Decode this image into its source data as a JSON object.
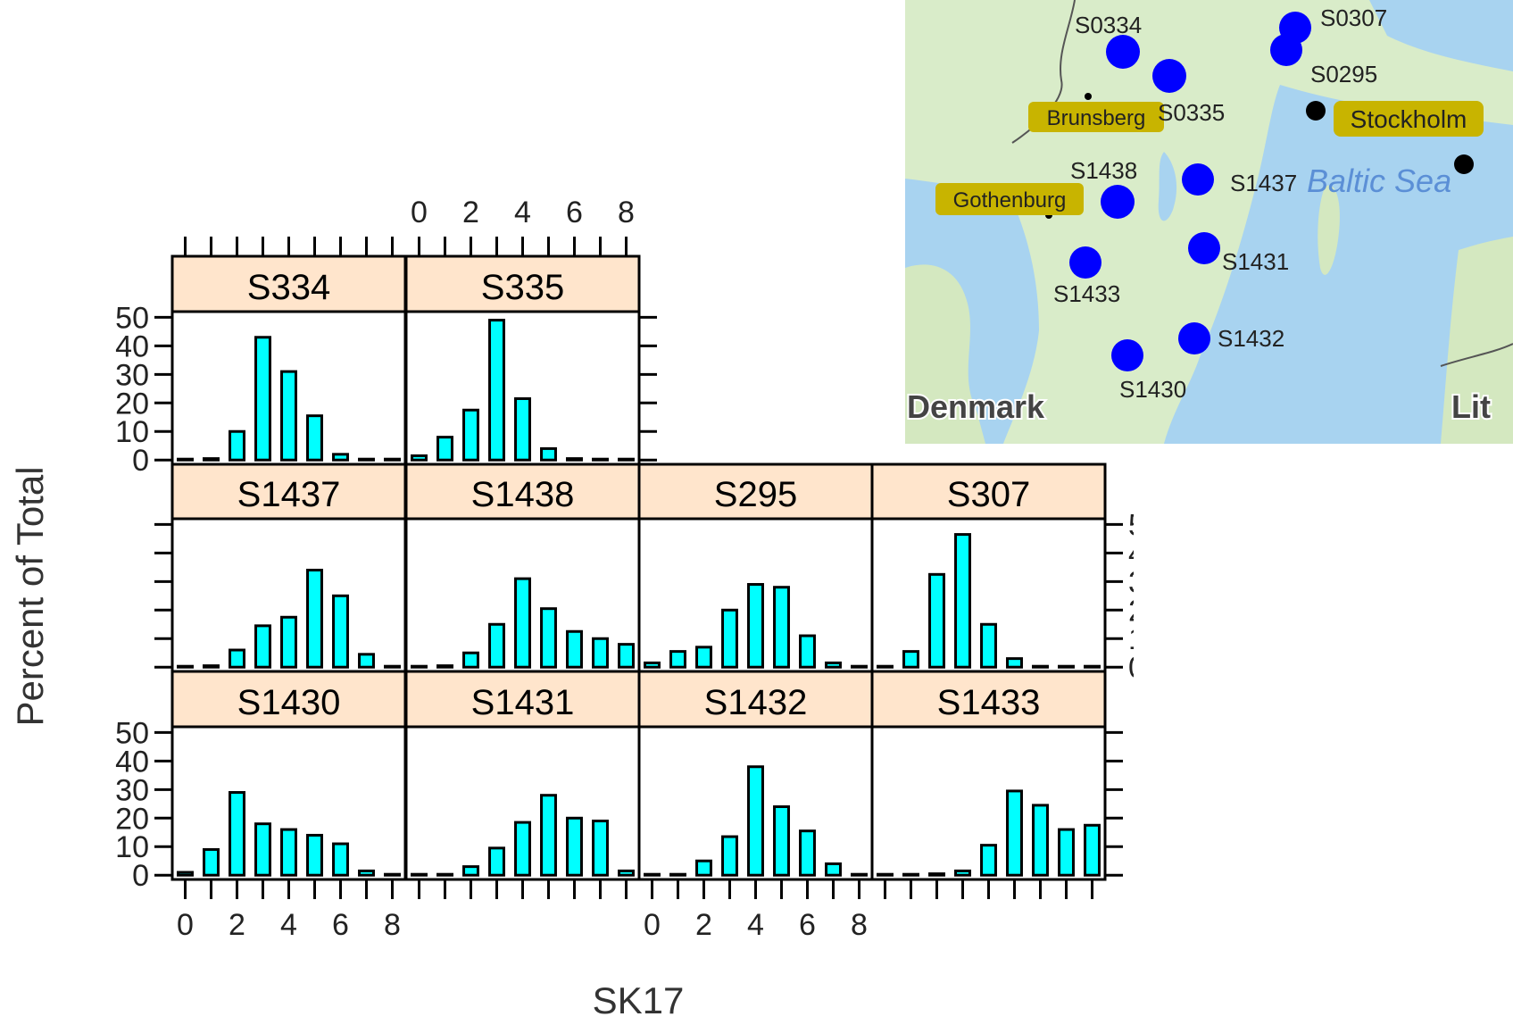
{
  "chart_data": {
    "type": "bar",
    "ylabel": "Percent of Total",
    "xlabel": "SK17",
    "xlim": [
      -0.5,
      8.5
    ],
    "ylim": [
      -1.5,
      52
    ],
    "x_ticks": [
      0,
      2,
      4,
      6,
      8
    ],
    "y_ticks": [
      0,
      10,
      20,
      30,
      40,
      50
    ],
    "x": [
      0,
      1,
      2,
      3,
      4,
      5,
      6,
      7,
      8
    ],
    "colors": {
      "bar": "#00ffff",
      "strip": "#ffe5cc",
      "outline": "#000000"
    },
    "panels": [
      {
        "name": "S334",
        "values": [
          0,
          0.5,
          10,
          43,
          31,
          15.5,
          2,
          0,
          0
        ]
      },
      {
        "name": "S335",
        "values": [
          1.5,
          8,
          17.5,
          49,
          21.5,
          4,
          0.5,
          0,
          0
        ]
      },
      {
        "name": "S1437",
        "values": [
          0,
          0.5,
          6,
          14.5,
          17.5,
          34,
          25,
          4.5,
          0
        ]
      },
      {
        "name": "S1438",
        "values": [
          0,
          0.5,
          5,
          15,
          31,
          20.5,
          12.5,
          10,
          8
        ]
      },
      {
        "name": "S295",
        "values": [
          1.5,
          5.5,
          7,
          20,
          29,
          28,
          11,
          1.5,
          0
        ]
      },
      {
        "name": "S307",
        "values": [
          0,
          5.5,
          32.5,
          46.5,
          15,
          3,
          0,
          0,
          0
        ]
      },
      {
        "name": "S1430",
        "values": [
          1,
          9,
          29,
          18,
          16,
          14,
          11,
          1.5,
          0
        ]
      },
      {
        "name": "S1431",
        "values": [
          0,
          0,
          3,
          9.5,
          18.5,
          28,
          20,
          19,
          1.5
        ]
      },
      {
        "name": "S1432",
        "values": [
          0,
          0,
          5,
          13.5,
          38,
          24,
          15.5,
          4,
          0
        ]
      },
      {
        "name": "S1433",
        "values": [
          0,
          0,
          0.5,
          1.5,
          10.5,
          29.5,
          24.5,
          16,
          17.5
        ]
      }
    ]
  },
  "map": {
    "sea_label": "Baltic Sea",
    "country_labels": [
      {
        "text": "Denmark"
      },
      {
        "text": "Lit"
      }
    ],
    "city_labels": [
      {
        "text": "Brunsberg"
      },
      {
        "text": "Stockholm"
      },
      {
        "text": "Gothenburg"
      }
    ],
    "sites": [
      {
        "text": "S0334"
      },
      {
        "text": "S0307"
      },
      {
        "text": "S0295"
      },
      {
        "text": "S0335"
      },
      {
        "text": "S1438"
      },
      {
        "text": "S1437"
      },
      {
        "text": "S1431"
      },
      {
        "text": "S1433"
      },
      {
        "text": "S1432"
      },
      {
        "text": "S1430"
      }
    ],
    "colors": {
      "land": "#d9ecc9",
      "water": "#a8d3f0",
      "site": "#0000ff",
      "city_label_bg": "#c8b400"
    }
  }
}
